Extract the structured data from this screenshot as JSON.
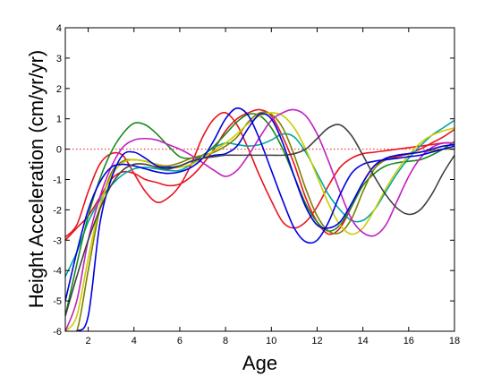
{
  "chart_data": {
    "type": "line",
    "xlabel": "Age",
    "ylabel": "Height Acceleration (cm/yr/yr)",
    "xlim": [
      1,
      18
    ],
    "ylim": [
      -6,
      4
    ],
    "xticks": [
      2,
      4,
      6,
      8,
      10,
      12,
      14,
      16,
      18
    ],
    "yticks": [
      -6,
      -5,
      -4,
      -3,
      -2,
      -1,
      0,
      1,
      2,
      3,
      4
    ],
    "grid": false,
    "reference_line": {
      "y": 0,
      "style": "dotted",
      "color": "#e8141e"
    },
    "series": [
      {
        "color": "#e8141e",
        "x": [
          1,
          1.5,
          2,
          2.5,
          3,
          3.5,
          4,
          4.5,
          5,
          5.5,
          6,
          6.5,
          7,
          7.5,
          8,
          8.5,
          9,
          9.5,
          10,
          10.5,
          11,
          11.5,
          12,
          12.5,
          13,
          13.5,
          14,
          14.5,
          15,
          15.5,
          16,
          16.5,
          17,
          17.5,
          18
        ],
        "y": [
          -3.0,
          -2.6,
          -2.2,
          -1.6,
          -1.0,
          -0.75,
          -0.8,
          -1.0,
          -1.1,
          -1.2,
          -1.15,
          -0.9,
          -0.5,
          0.0,
          0.6,
          1.0,
          1.2,
          1.3,
          1.1,
          0.4,
          -0.5,
          -1.6,
          -2.4,
          -2.8,
          -2.6,
          -1.9,
          -1.1,
          -0.55,
          -0.35,
          -0.25,
          -0.15,
          0.0,
          0.2,
          0.4,
          0.65
        ]
      },
      {
        "color": "#e8141e",
        "x": [
          1,
          1.5,
          2,
          2.5,
          3,
          3.5,
          4,
          4.5,
          5,
          5.5,
          6,
          6.5,
          7,
          7.5,
          8,
          8.5,
          9,
          9.5,
          10,
          10.5,
          11,
          11.5,
          12,
          12.5,
          13,
          13.5,
          14,
          14.5,
          15,
          15.5,
          16,
          16.5,
          17,
          17.5,
          18
        ],
        "y": [
          -2.9,
          -2.5,
          -1.4,
          -0.5,
          -0.15,
          -0.2,
          -0.8,
          -1.4,
          -1.75,
          -1.6,
          -1.2,
          -0.5,
          0.4,
          1.0,
          1.2,
          0.8,
          0.0,
          -0.9,
          -1.7,
          -2.4,
          -2.6,
          -2.4,
          -1.9,
          -1.2,
          -0.6,
          -0.3,
          -0.15,
          -0.1,
          -0.05,
          0.0,
          0.05,
          0.1,
          0.15,
          0.2,
          0.2
        ]
      },
      {
        "color": "#00a6a6",
        "x": [
          1,
          1.5,
          2,
          2.5,
          3,
          3.5,
          4,
          4.5,
          5,
          5.5,
          6,
          6.5,
          7,
          7.5,
          8,
          8.5,
          9,
          9.5,
          10,
          10.5,
          11,
          11.5,
          12,
          12.5,
          13,
          13.5,
          14,
          14.5,
          15,
          15.5,
          16,
          16.5,
          17,
          17.5,
          18
        ],
        "y": [
          -4.2,
          -3.4,
          -2.4,
          -1.7,
          -1.2,
          -0.85,
          -0.65,
          -0.6,
          -0.65,
          -0.7,
          -0.7,
          -0.5,
          -0.2,
          0.05,
          0.2,
          0.15,
          0.1,
          0.15,
          0.3,
          0.5,
          0.4,
          -0.1,
          -0.8,
          -1.5,
          -2.0,
          -2.35,
          -2.35,
          -2.0,
          -1.4,
          -0.8,
          -0.3,
          0.1,
          0.45,
          0.7,
          0.95
        ]
      },
      {
        "color": "#1a8a1a",
        "x": [
          1,
          1.5,
          2,
          2.5,
          3,
          3.5,
          4,
          4.5,
          5,
          5.5,
          6,
          6.5,
          7,
          7.5,
          8,
          8.5,
          9,
          9.5,
          10,
          10.5,
          11,
          11.5,
          12,
          12.5,
          13,
          13.5,
          14,
          14.5,
          15,
          15.5,
          16,
          16.5,
          17,
          17.5,
          18
        ],
        "y": [
          -5.5,
          -3.8,
          -2.2,
          -1.0,
          -0.1,
          0.5,
          0.85,
          0.8,
          0.5,
          0.1,
          -0.25,
          -0.3,
          -0.2,
          0.1,
          0.5,
          0.9,
          1.15,
          1.1,
          0.7,
          0.0,
          -0.9,
          -1.8,
          -2.4,
          -2.7,
          -2.5,
          -1.9,
          -1.2,
          -0.8,
          -0.55,
          -0.45,
          -0.4,
          -0.35,
          -0.2,
          0.0,
          0.25
        ]
      },
      {
        "color": "#7f7f00",
        "x": [
          1,
          1.5,
          2,
          2.5,
          3,
          3.5,
          4,
          4.5,
          5,
          5.5,
          6,
          6.5,
          7,
          7.5,
          8,
          8.5,
          9,
          9.5,
          10,
          10.5,
          11,
          11.5,
          12,
          12.5,
          13,
          13.5,
          14,
          14.5,
          15,
          15.5,
          16,
          16.5,
          17,
          17.5,
          18
        ],
        "y": [
          -6.0,
          -6.0,
          -4.0,
          -2.0,
          -0.8,
          -0.4,
          -0.35,
          -0.4,
          -0.5,
          -0.55,
          -0.45,
          -0.3,
          -0.2,
          -0.1,
          0.1,
          0.4,
          0.9,
          1.2,
          1.15,
          0.7,
          -0.2,
          -1.3,
          -2.2,
          -2.7,
          -2.75,
          -2.3,
          -1.4,
          -0.65,
          -0.35,
          -0.2,
          -0.15,
          -0.1,
          -0.05,
          0.0,
          0.0
        ]
      },
      {
        "color": "#cccc00",
        "x": [
          1,
          1.5,
          2,
          2.5,
          3,
          3.5,
          4,
          4.5,
          5,
          5.5,
          6,
          6.5,
          7,
          7.5,
          8,
          8.5,
          9,
          9.5,
          10,
          10.5,
          11,
          11.5,
          12,
          12.5,
          13,
          13.5,
          14,
          14.5,
          15,
          15.5,
          16,
          16.5,
          17,
          17.5,
          18
        ],
        "y": [
          -6.0,
          -5.5,
          -3.6,
          -1.9,
          -0.9,
          -0.45,
          -0.35,
          -0.4,
          -0.5,
          -0.6,
          -0.6,
          -0.5,
          -0.3,
          -0.05,
          0.2,
          0.5,
          0.85,
          1.1,
          1.2,
          1.1,
          0.7,
          0.0,
          -0.9,
          -1.8,
          -2.5,
          -2.8,
          -2.6,
          -2.0,
          -1.3,
          -0.7,
          -0.2,
          0.2,
          0.45,
          0.6,
          0.7
        ]
      },
      {
        "color": "#c020c0",
        "x": [
          1,
          1.5,
          2,
          2.5,
          3,
          3.5,
          4,
          4.5,
          5,
          5.5,
          6,
          6.5,
          7,
          7.5,
          8,
          8.5,
          9,
          9.5,
          10,
          10.5,
          11,
          11.5,
          12,
          12.5,
          13,
          13.5,
          14,
          14.5,
          15,
          15.5,
          16,
          16.5,
          17,
          17.5,
          18
        ],
        "y": [
          -6.0,
          -5.0,
          -3.0,
          -1.6,
          -0.6,
          0.05,
          0.3,
          0.35,
          0.3,
          0.15,
          0.0,
          -0.2,
          -0.45,
          -0.7,
          -0.9,
          -0.7,
          -0.2,
          0.4,
          0.95,
          1.2,
          1.3,
          1.1,
          0.5,
          -0.4,
          -1.4,
          -2.3,
          -2.75,
          -2.85,
          -2.5,
          -1.7,
          -0.9,
          -0.3,
          0.05,
          0.2,
          0.2
        ]
      },
      {
        "color": "#0000e0",
        "x": [
          1,
          1.5,
          2,
          2.5,
          3,
          3.5,
          4,
          4.5,
          5,
          5.5,
          6,
          6.5,
          7,
          7.5,
          8,
          8.5,
          9,
          9.5,
          10,
          10.5,
          11,
          11.5,
          12,
          12.5,
          13,
          13.5,
          14,
          14.5,
          15,
          15.5,
          16,
          16.5,
          17,
          17.5,
          18
        ],
        "y": [
          -5.0,
          -3.4,
          -2.0,
          -1.1,
          -0.6,
          -0.5,
          -0.55,
          -0.65,
          -0.75,
          -0.8,
          -0.75,
          -0.6,
          -0.3,
          0.3,
          1.0,
          1.35,
          1.1,
          0.3,
          -0.7,
          -1.7,
          -2.6,
          -3.05,
          -3.0,
          -2.4,
          -1.5,
          -0.8,
          -0.5,
          -0.4,
          -0.35,
          -0.3,
          -0.25,
          -0.2,
          -0.1,
          0.0,
          0.1
        ]
      },
      {
        "color": "#0000e0",
        "x": [
          1,
          1.5,
          2,
          2.5,
          3,
          3.5,
          4,
          4.5,
          5,
          5.5,
          6,
          6.5,
          7,
          7.5,
          8,
          8.5,
          9,
          9.5,
          10,
          10.5,
          11,
          11.5,
          12,
          12.5,
          13,
          13.5,
          14,
          14.5,
          15,
          15.5,
          16,
          16.5,
          17,
          17.5,
          18
        ],
        "y": [
          -6.0,
          -6.0,
          -5.5,
          -2.5,
          -1.0,
          -0.2,
          -0.1,
          -0.3,
          -0.55,
          -0.6,
          -0.55,
          -0.4,
          -0.3,
          -0.2,
          -0.15,
          0.1,
          0.7,
          1.15,
          1.0,
          0.2,
          -0.9,
          -1.9,
          -2.5,
          -2.6,
          -2.4,
          -1.8,
          -1.1,
          -0.55,
          -0.3,
          -0.2,
          -0.15,
          -0.1,
          0.0,
          0.1,
          0.15
        ]
      },
      {
        "color": "#404040",
        "x": [
          1,
          1.5,
          2,
          2.5,
          3,
          3.5,
          4,
          4.5,
          5,
          5.5,
          6,
          6.5,
          7,
          7.5,
          8,
          8.5,
          9,
          9.5,
          10,
          10.5,
          11,
          11.5,
          12,
          12.5,
          13,
          13.5,
          14,
          14.5,
          15,
          15.5,
          16,
          16.5,
          17,
          17.5,
          18
        ],
        "y": [
          -5.5,
          -4.2,
          -3.0,
          -2.0,
          -1.2,
          -0.7,
          -0.5,
          -0.5,
          -0.6,
          -0.65,
          -0.55,
          -0.4,
          -0.3,
          -0.25,
          -0.2,
          -0.2,
          -0.2,
          -0.2,
          -0.2,
          -0.2,
          -0.15,
          0.0,
          0.35,
          0.7,
          0.8,
          0.45,
          -0.2,
          -0.9,
          -1.5,
          -1.95,
          -2.15,
          -2.0,
          -1.5,
          -0.8,
          -0.2
        ]
      }
    ]
  }
}
